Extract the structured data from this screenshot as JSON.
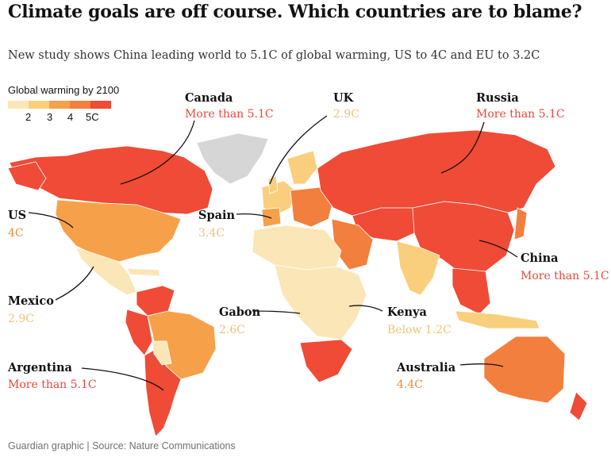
{
  "header": {
    "title": "Climate goals are off course. Which countries are to blame?",
    "subtitle": "New study shows China leading world to 5.1C of global warming, US to 4C and EU to 3.2C"
  },
  "legend": {
    "title": "Global warming by 2100",
    "ticks": [
      "2",
      "3",
      "4",
      "5C"
    ],
    "colors": [
      "#fbe6b8",
      "#f9cf7d",
      "#f6a14a",
      "#f27f3d",
      "#ef4b36"
    ]
  },
  "colors": {
    "no_data": "#d6d6d6",
    "below_2": "#fbe6b8",
    "t2_3": "#f9cf7d",
    "t3_4": "#f6a14a",
    "t4_5": "#f27f3d",
    "above_5": "#ef4b36",
    "value_red": "#e8473a",
    "value_orange": "#ee8a3e",
    "value_light": "#eec27a"
  },
  "callouts": {
    "canada": {
      "name": "Canada",
      "value": "More than 5.1C"
    },
    "uk": {
      "name": "UK",
      "value": "2.9C"
    },
    "russia": {
      "name": "Russia",
      "value": "More than 5.1C"
    },
    "us": {
      "name": "US",
      "value": "4C"
    },
    "spain": {
      "name": "Spain",
      "value": "3.4C"
    },
    "china": {
      "name": "China",
      "value": "More than 5.1C"
    },
    "mexico": {
      "name": "Mexico",
      "value": "2.9C"
    },
    "gabon": {
      "name": "Gabon",
      "value": "2.6C"
    },
    "kenya": {
      "name": "Kenya",
      "value": "Below 1.2C"
    },
    "argentina": {
      "name": "Argentina",
      "value": "More than 5.1C"
    },
    "australia": {
      "name": "Australia",
      "value": "4.4C"
    }
  },
  "footer": {
    "source": "Guardian graphic | Source: Nature Communications"
  }
}
